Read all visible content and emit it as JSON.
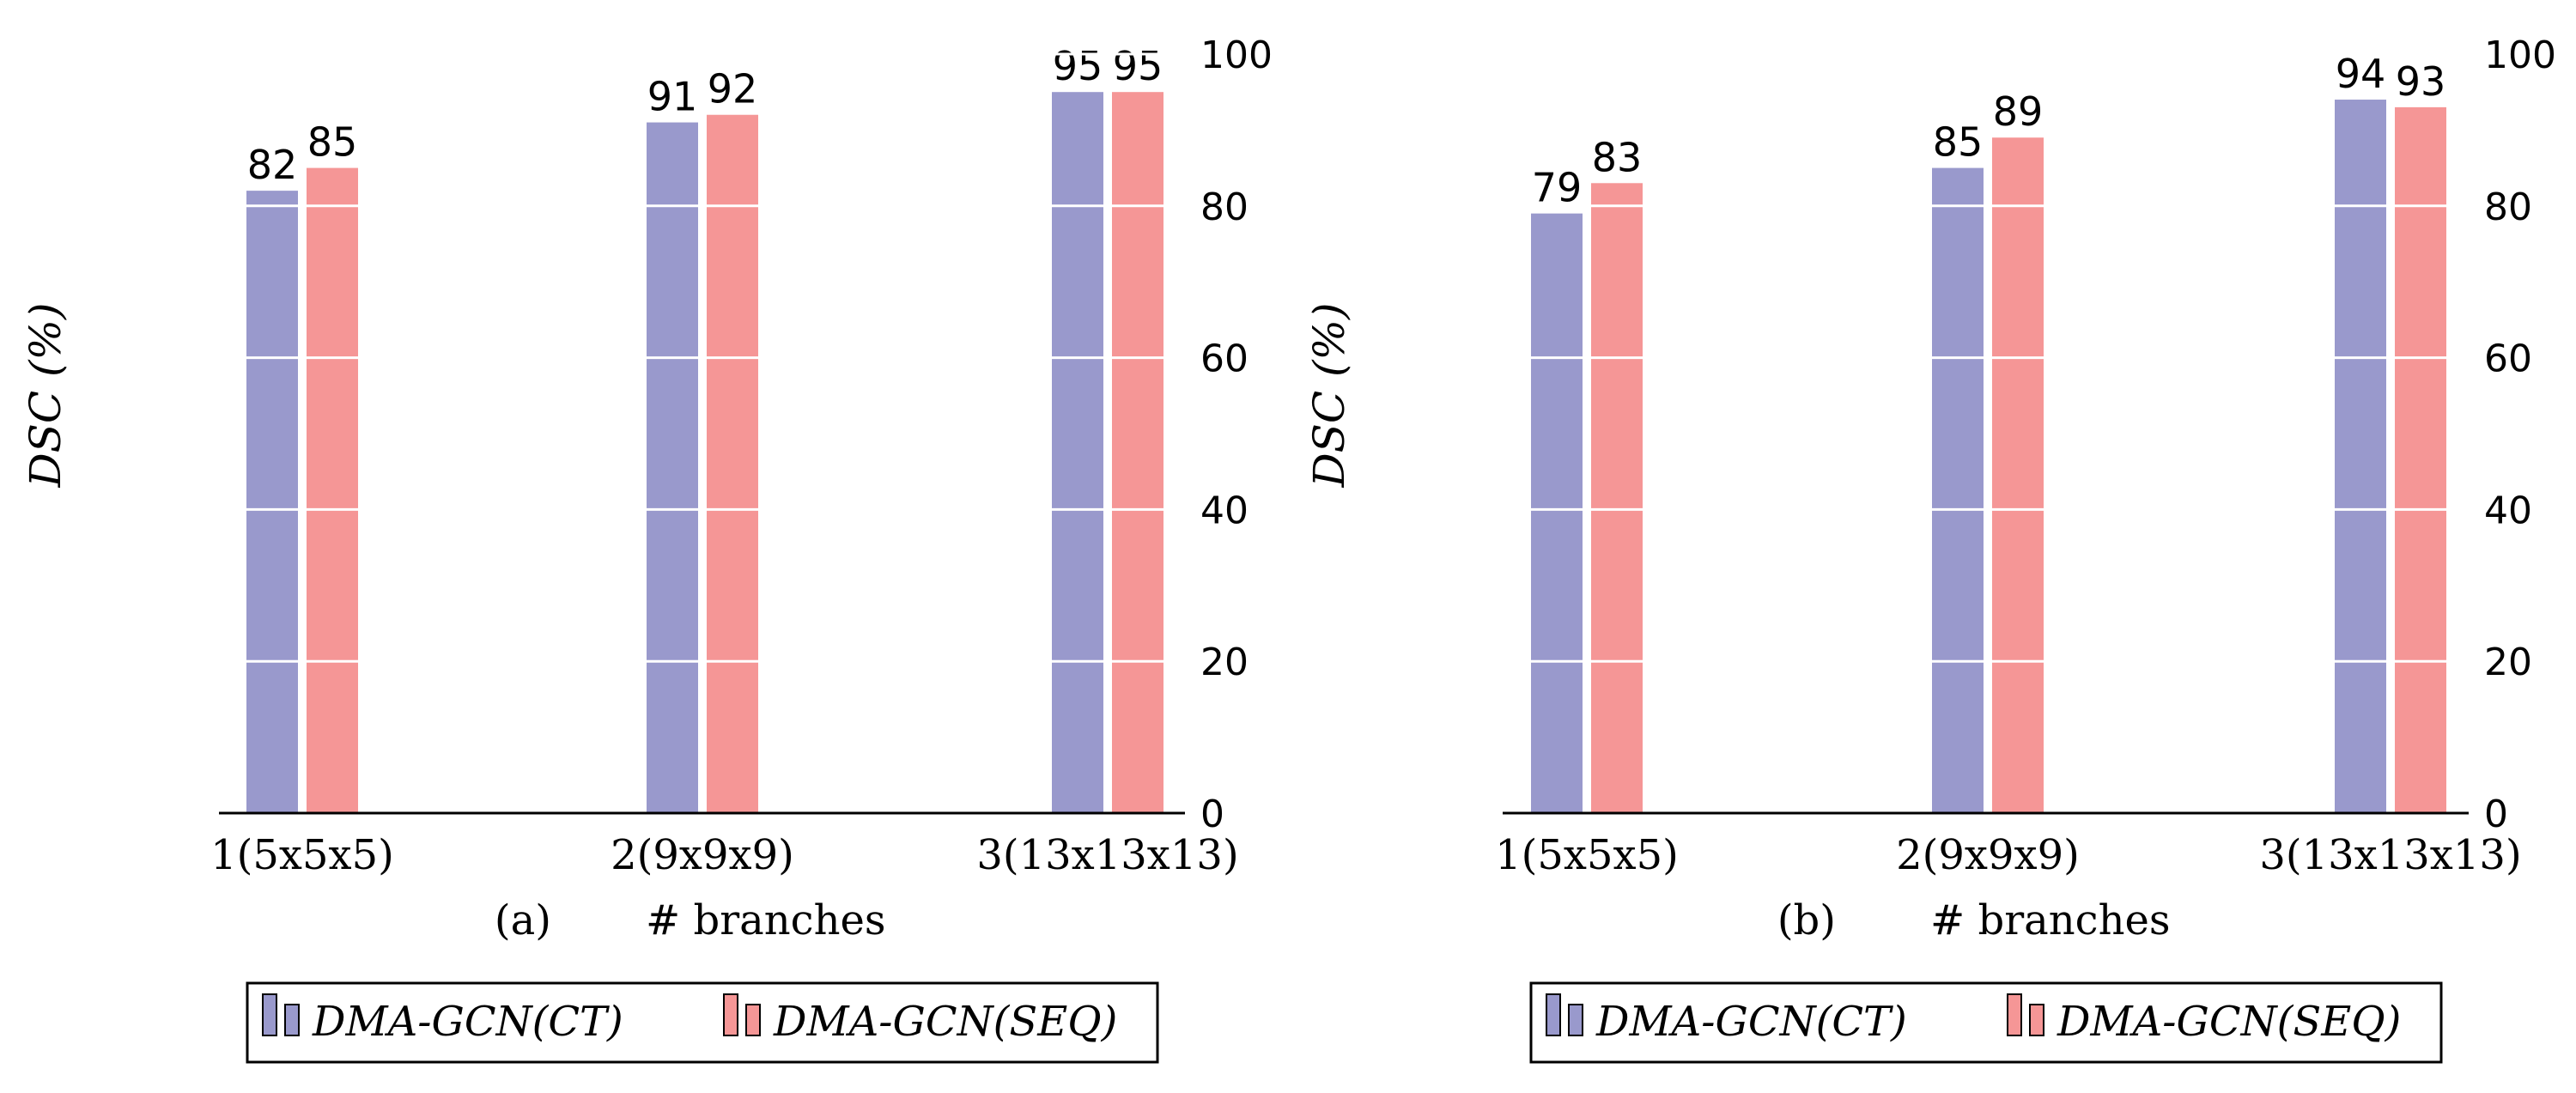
{
  "colors": {
    "ct": "#9999cc",
    "seq": "#f59696"
  },
  "chart_data": [
    {
      "type": "bar",
      "caption_label": "(a)",
      "xlabel": "# branches",
      "ylabel": "DSC (%)",
      "ylim": [
        0,
        100
      ],
      "yticks": [
        0,
        20,
        40,
        60,
        80,
        100
      ],
      "categories": [
        "1(5x5x5)",
        "2(9x9x9)",
        "3(13x13x13)"
      ],
      "series": [
        {
          "name": "DMA-GCN(CT)",
          "values": [
            82,
            91,
            95
          ]
        },
        {
          "name": "DMA-GCN(SEQ)",
          "values": [
            85,
            92,
            95
          ]
        }
      ],
      "legend_position": "bottom"
    },
    {
      "type": "bar",
      "caption_label": "(b)",
      "xlabel": "# branches",
      "ylabel": "DSC (%)",
      "ylim": [
        0,
        100
      ],
      "yticks": [
        0,
        20,
        40,
        60,
        80,
        100
      ],
      "categories": [
        "1(5x5x5)",
        "2(9x9x9)",
        "3(13x13x13)"
      ],
      "series": [
        {
          "name": "DMA-GCN(CT)",
          "values": [
            79,
            85,
            94
          ]
        },
        {
          "name": "DMA-GCN(SEQ)",
          "values": [
            83,
            89,
            93
          ]
        }
      ],
      "legend_position": "bottom"
    }
  ]
}
